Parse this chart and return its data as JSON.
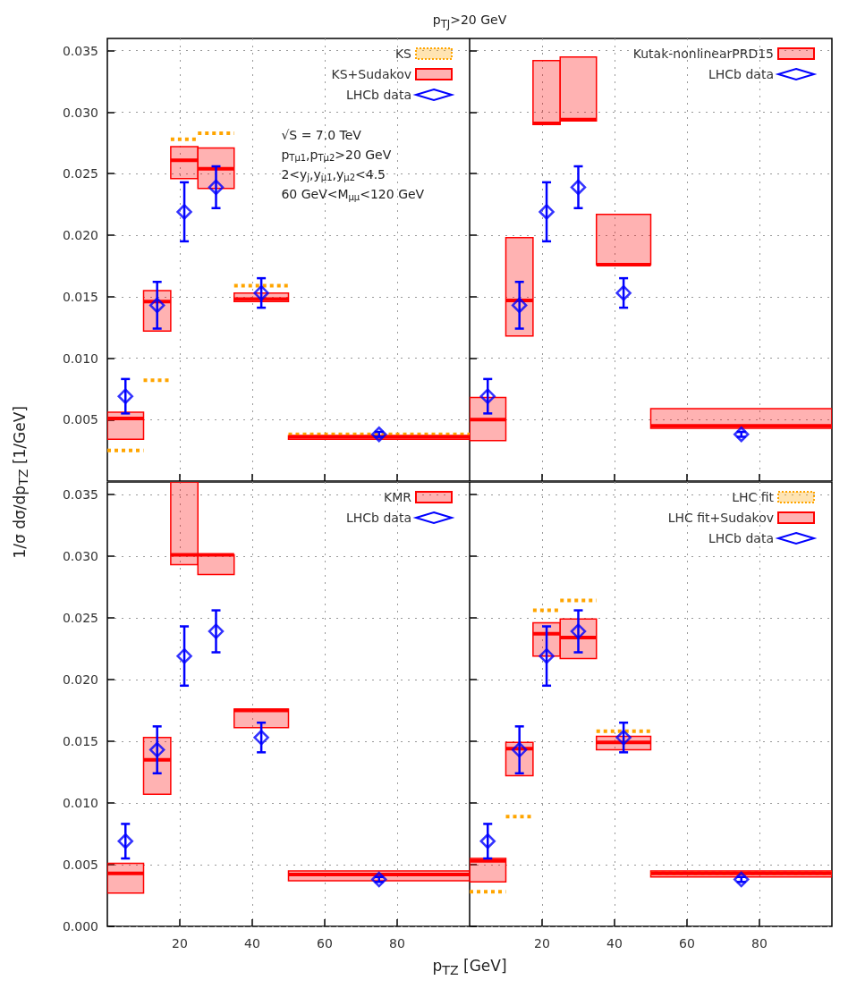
{
  "chart_data": [
    {
      "type": "step",
      "title": "p$_{TJ}$>20 GeV",
      "ylabel": "1/σ dσ/dp$_{TZ}$ [1/GeV]",
      "xlim": [
        0,
        100
      ],
      "xticks": [
        20,
        40,
        60,
        80
      ],
      "ylim": [
        0,
        0.036
      ],
      "yticks": [
        0.005,
        {
          "value": 0.01,
          "label": "0.010"
        },
        0.015,
        {
          "value": 0.02,
          "label": "0.020"
        },
        0.025,
        {
          "value": 0.03,
          "label": "0.030"
        },
        0.035
      ],
      "tick_labels": "y",
      "grid": true,
      "legend": "top right",
      "annotations": [
        "√S = 7.0 TeV",
        "p$_{Tμ1}$,p$_{Tμ2}$>20 GeV",
        "2<y$_{j}$,y$_{μ1}$,y$_{μ2}$<4.5",
        "60 GeV<M$_{μμ}$<120 GeV"
      ],
      "series": [
        {
          "name": "KS",
          "color": "#ffa500",
          "line_style": "dotted",
          "x": [
            0,
            10,
            10,
            17.5,
            17.5,
            25,
            25,
            35,
            35,
            50,
            50,
            100
          ],
          "values": [
            0.0025,
            0.0025,
            0.0082,
            0.0082,
            0.0278,
            0.0278,
            0.0283,
            0.0283,
            0.0159,
            0.0159,
            0.0038,
            0.0038
          ]
        },
        {
          "name": "KS+Sudakov",
          "color": "#ff0000",
          "line_style": "solid",
          "x": [
            0,
            10,
            10,
            17.5,
            17.5,
            25,
            25,
            35,
            35,
            50,
            50,
            100
          ],
          "values": [
            0.0051,
            0.0051,
            0.0146,
            0.0146,
            0.0261,
            0.0261,
            0.0254,
            0.0254,
            0.0148,
            0.0148,
            0.0036,
            0.0036
          ],
          "lower": [
            0.0034,
            0.0034,
            0.0122,
            0.0122,
            0.0246,
            0.0246,
            0.0238,
            0.0238,
            0.0146,
            0.0146,
            0.0034,
            0.0034
          ],
          "upper": [
            0.0056,
            0.0056,
            0.0155,
            0.0155,
            0.0272,
            0.0272,
            0.0271,
            0.0271,
            0.0153,
            0.0153,
            0.0037,
            0.0037
          ]
        },
        {
          "name": "LHCb data",
          "type": "scatter",
          "color": "#0000ff",
          "marker": "diamond",
          "x": [
            5,
            13.75,
            21.25,
            30,
            42.5,
            75
          ],
          "values": [
            0.0069,
            0.0143,
            0.0219,
            0.0239,
            0.0153,
            0.0038
          ],
          "errors": [
            0.0014,
            0.0019,
            0.0024,
            0.0017,
            0.0012,
            0.0002
          ]
        }
      ]
    },
    {
      "type": "step",
      "xlim": [
        0,
        100
      ],
      "xticks": [
        20,
        40,
        60,
        80
      ],
      "ylim": [
        0,
        0.036
      ],
      "yticks": [
        0.005,
        0.01,
        0.015,
        0.02,
        0.025,
        0.03,
        0.035
      ],
      "tick_labels": false,
      "grid": true,
      "legend": "top right",
      "series": [
        {
          "name": "Kutak-nonlinearPRD15",
          "color": "#ff0000",
          "line_style": "solid",
          "x": [
            0,
            10,
            10,
            17.5,
            17.5,
            25,
            25,
            35,
            35,
            50,
            50,
            100
          ],
          "values": [
            0.005,
            0.005,
            0.0147,
            0.0147,
            0.0291,
            0.0291,
            0.0294,
            0.0294,
            0.0176,
            0.0176,
            0.0045,
            0.0045
          ],
          "lower": [
            0.0033,
            0.0033,
            0.0118,
            0.0118,
            0.029,
            0.029,
            0.0293,
            0.0293,
            0.0176,
            0.0176,
            0.0043,
            0.0043
          ],
          "upper": [
            0.0068,
            0.0068,
            0.0198,
            0.0198,
            0.0342,
            0.0342,
            0.0345,
            0.0345,
            0.0217,
            0.0217,
            0.0059,
            0.0059
          ]
        },
        {
          "name": "LHCb data",
          "type": "scatter",
          "color": "#0000ff",
          "marker": "diamond",
          "x": [
            5,
            13.75,
            21.25,
            30,
            42.5,
            75
          ],
          "values": [
            0.0069,
            0.0143,
            0.0219,
            0.0239,
            0.0153,
            0.0038
          ],
          "errors": [
            0.0014,
            0.0019,
            0.0024,
            0.0017,
            0.0012,
            0.0002
          ]
        }
      ]
    },
    {
      "type": "step",
      "xlabel": "p$_{TZ}$ [GeV]",
      "xlim": [
        0,
        100
      ],
      "xticks": [
        20,
        40,
        60,
        80
      ],
      "ylim": [
        0,
        0.036
      ],
      "yticks": [
        {
          "value": 0,
          "label": "0.000"
        },
        0.005,
        {
          "value": 0.01,
          "label": "0.010"
        },
        0.015,
        {
          "value": 0.02,
          "label": "0.020"
        },
        0.025,
        {
          "value": 0.03,
          "label": "0.030"
        },
        0.035
      ],
      "grid": true,
      "legend": "top right",
      "series": [
        {
          "name": "KMR",
          "color": "#ff0000",
          "line_style": "solid",
          "x": [
            0,
            10,
            10,
            17.5,
            17.5,
            25,
            25,
            35,
            35,
            50,
            50,
            100
          ],
          "values": [
            0.0043,
            0.0043,
            0.0135,
            0.0135,
            0.0301,
            0.0301,
            0.0301,
            0.0301,
            0.0175,
            0.0175,
            0.0042,
            0.0042
          ],
          "lower": [
            0.0027,
            0.0027,
            0.0107,
            0.0107,
            0.0293,
            0.0293,
            0.0285,
            0.0285,
            0.0161,
            0.0161,
            0.0037,
            0.0037
          ],
          "upper": [
            0.0051,
            0.0051,
            0.0153,
            0.0153,
            0.036,
            0.036,
            0.0301,
            0.0301,
            0.0176,
            0.0176,
            0.0045,
            0.0045
          ]
        },
        {
          "name": "LHCb data",
          "type": "scatter",
          "color": "#0000ff",
          "marker": "diamond",
          "x": [
            5,
            13.75,
            21.25,
            30,
            42.5,
            75
          ],
          "values": [
            0.0069,
            0.0143,
            0.0219,
            0.0239,
            0.0153,
            0.0038
          ],
          "errors": [
            0.0014,
            0.0019,
            0.0024,
            0.0017,
            0.0012,
            0.0002
          ]
        }
      ]
    },
    {
      "type": "step",
      "xlim": [
        0,
        100
      ],
      "xticks": [
        20,
        40,
        60,
        80
      ],
      "ylim": [
        0,
        0.036
      ],
      "yticks": [
        0,
        0.005,
        0.01,
        0.015,
        0.02,
        0.025,
        0.03,
        0.035
      ],
      "tick_labels": "x",
      "grid": true,
      "legend": "top right",
      "series": [
        {
          "name": "LHC fit",
          "color": "#ffa500",
          "line_style": "dotted",
          "x": [
            0,
            10,
            10,
            17.5,
            17.5,
            25,
            25,
            35,
            35,
            50,
            50,
            100
          ],
          "values": [
            0.0028,
            0.0028,
            0.0089,
            0.0089,
            0.0256,
            0.0256,
            0.0264,
            0.0264,
            0.0158,
            0.0158,
            0.0043,
            0.0043
          ]
        },
        {
          "name": "LHC fit+Sudakov",
          "color": "#ff0000",
          "line_style": "solid",
          "x": [
            0,
            10,
            10,
            17.5,
            17.5,
            25,
            25,
            35,
            35,
            50,
            50,
            100
          ],
          "values": [
            0.0053,
            0.0053,
            0.0144,
            0.0144,
            0.0237,
            0.0237,
            0.0234,
            0.0234,
            0.0149,
            0.0149,
            0.0043,
            0.0043
          ],
          "lower": [
            0.0036,
            0.0036,
            0.0122,
            0.0122,
            0.0219,
            0.0219,
            0.0217,
            0.0217,
            0.0143,
            0.0143,
            0.004,
            0.004
          ],
          "upper": [
            0.0055,
            0.0055,
            0.0149,
            0.0149,
            0.0246,
            0.0246,
            0.0249,
            0.0249,
            0.0154,
            0.0154,
            0.0045,
            0.0045
          ]
        },
        {
          "name": "LHCb data",
          "type": "scatter",
          "color": "#0000ff",
          "marker": "diamond",
          "x": [
            5,
            13.75,
            21.25,
            30,
            42.5,
            75
          ],
          "values": [
            0.0069,
            0.0143,
            0.0219,
            0.0239,
            0.0153,
            0.0038
          ],
          "errors": [
            0.0014,
            0.0019,
            0.0024,
            0.0017,
            0.0012,
            0.0002
          ]
        }
      ]
    }
  ]
}
